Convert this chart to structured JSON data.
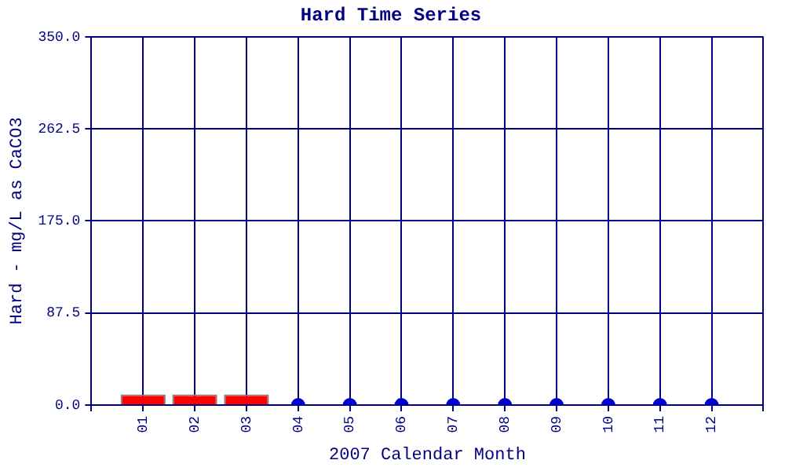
{
  "chart_data": {
    "type": "bar",
    "title": "Hard Time Series",
    "xlabel": "2007 Calendar Month",
    "ylabel": "Hard - mg/L as CaCO3",
    "categories": [
      null,
      "01",
      "02",
      "03",
      "04",
      "05",
      "06",
      "07",
      "08",
      "09",
      "10",
      "11",
      "12",
      null
    ],
    "series": [
      {
        "color": "#ff0000",
        "values": [
          null,
          10,
          10,
          10,
          null,
          null,
          null,
          null,
          null,
          null,
          null,
          null,
          null,
          null
        ]
      },
      {
        "type": "scatter",
        "color": "#0000cc",
        "values": [
          null,
          null,
          null,
          null,
          0,
          0,
          0,
          0,
          0,
          0,
          0,
          0,
          0,
          null
        ]
      }
    ],
    "ylim": [
      0,
      350
    ],
    "yticks": [
      {
        "value": 0,
        "label": "0.0"
      },
      {
        "value": 87.5,
        "label": "87.5"
      },
      {
        "value": 175,
        "label": "175.0"
      },
      {
        "value": 262.5,
        "label": "262.5"
      },
      {
        "value": 350,
        "label": "350.0"
      }
    ],
    "grid": true,
    "legend": false,
    "marker": "circle"
  }
}
